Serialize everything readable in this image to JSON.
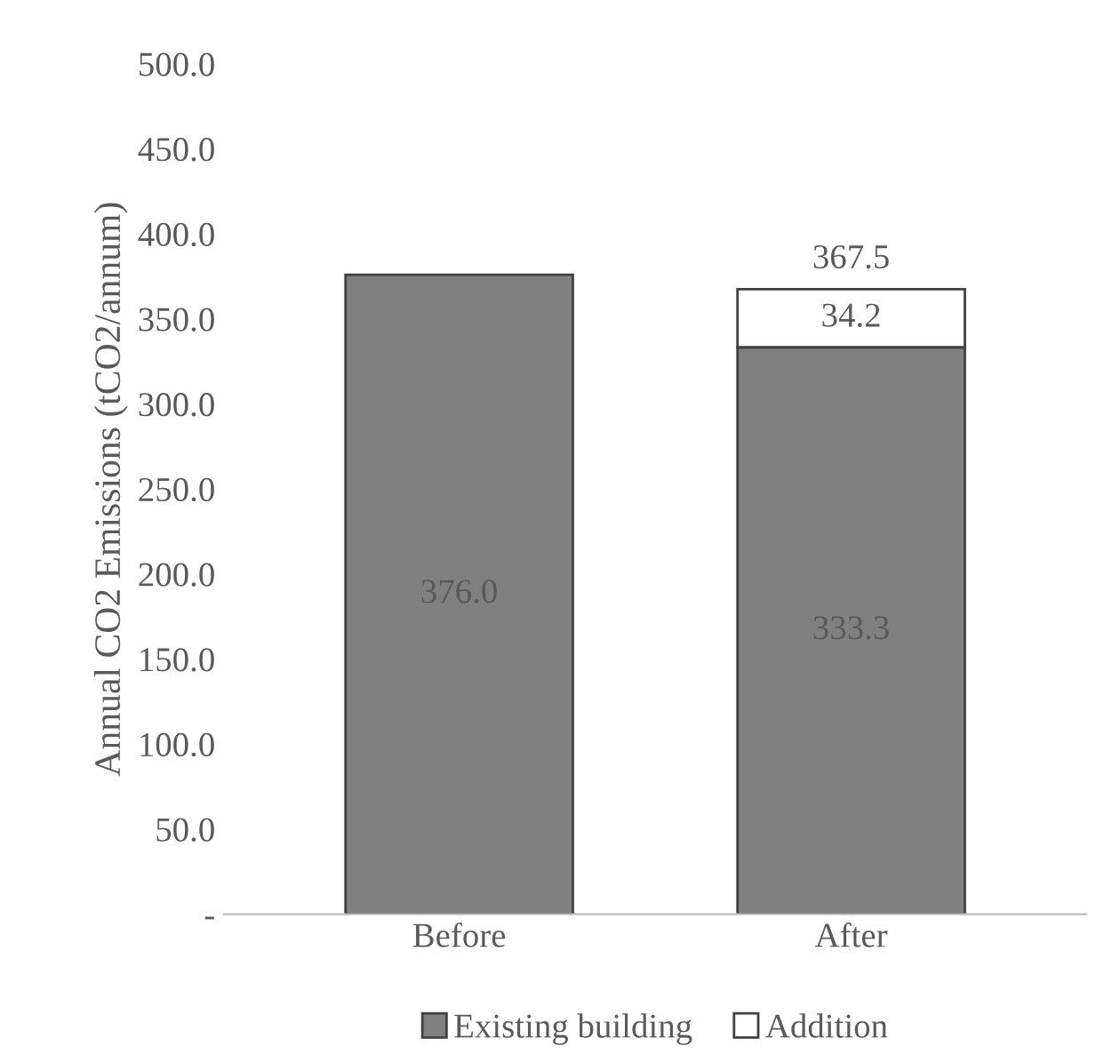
{
  "chart_data": {
    "type": "bar",
    "stacked": true,
    "ylabel": "Annual CO2 Emissions (tCO2/annum)",
    "categories": [
      "Before",
      "After"
    ],
    "series": [
      {
        "name": "Existing building",
        "color": "#808080",
        "values": [
          376.0,
          333.3
        ],
        "value_labels": [
          "376.0",
          "333.3"
        ]
      },
      {
        "name": "Addition",
        "color": "#ffffff",
        "values": [
          null,
          34.2
        ],
        "value_labels": [
          null,
          "34.2"
        ]
      }
    ],
    "totals": [
      null,
      "367.5"
    ],
    "ylim": [
      0,
      500
    ],
    "yticks": [
      {
        "value": 0,
        "label": "-"
      },
      {
        "value": 50,
        "label": "50.0"
      },
      {
        "value": 100,
        "label": "100.0"
      },
      {
        "value": 150,
        "label": "150.0"
      },
      {
        "value": 200,
        "label": "200.0"
      },
      {
        "value": 250,
        "label": "250.0"
      },
      {
        "value": 300,
        "label": "300.0"
      },
      {
        "value": 350,
        "label": "350.0"
      },
      {
        "value": 400,
        "label": "400.0"
      },
      {
        "value": 450,
        "label": "450.0"
      },
      {
        "value": 500,
        "label": "500.0"
      }
    ],
    "grid": false,
    "legend": "bottom"
  }
}
